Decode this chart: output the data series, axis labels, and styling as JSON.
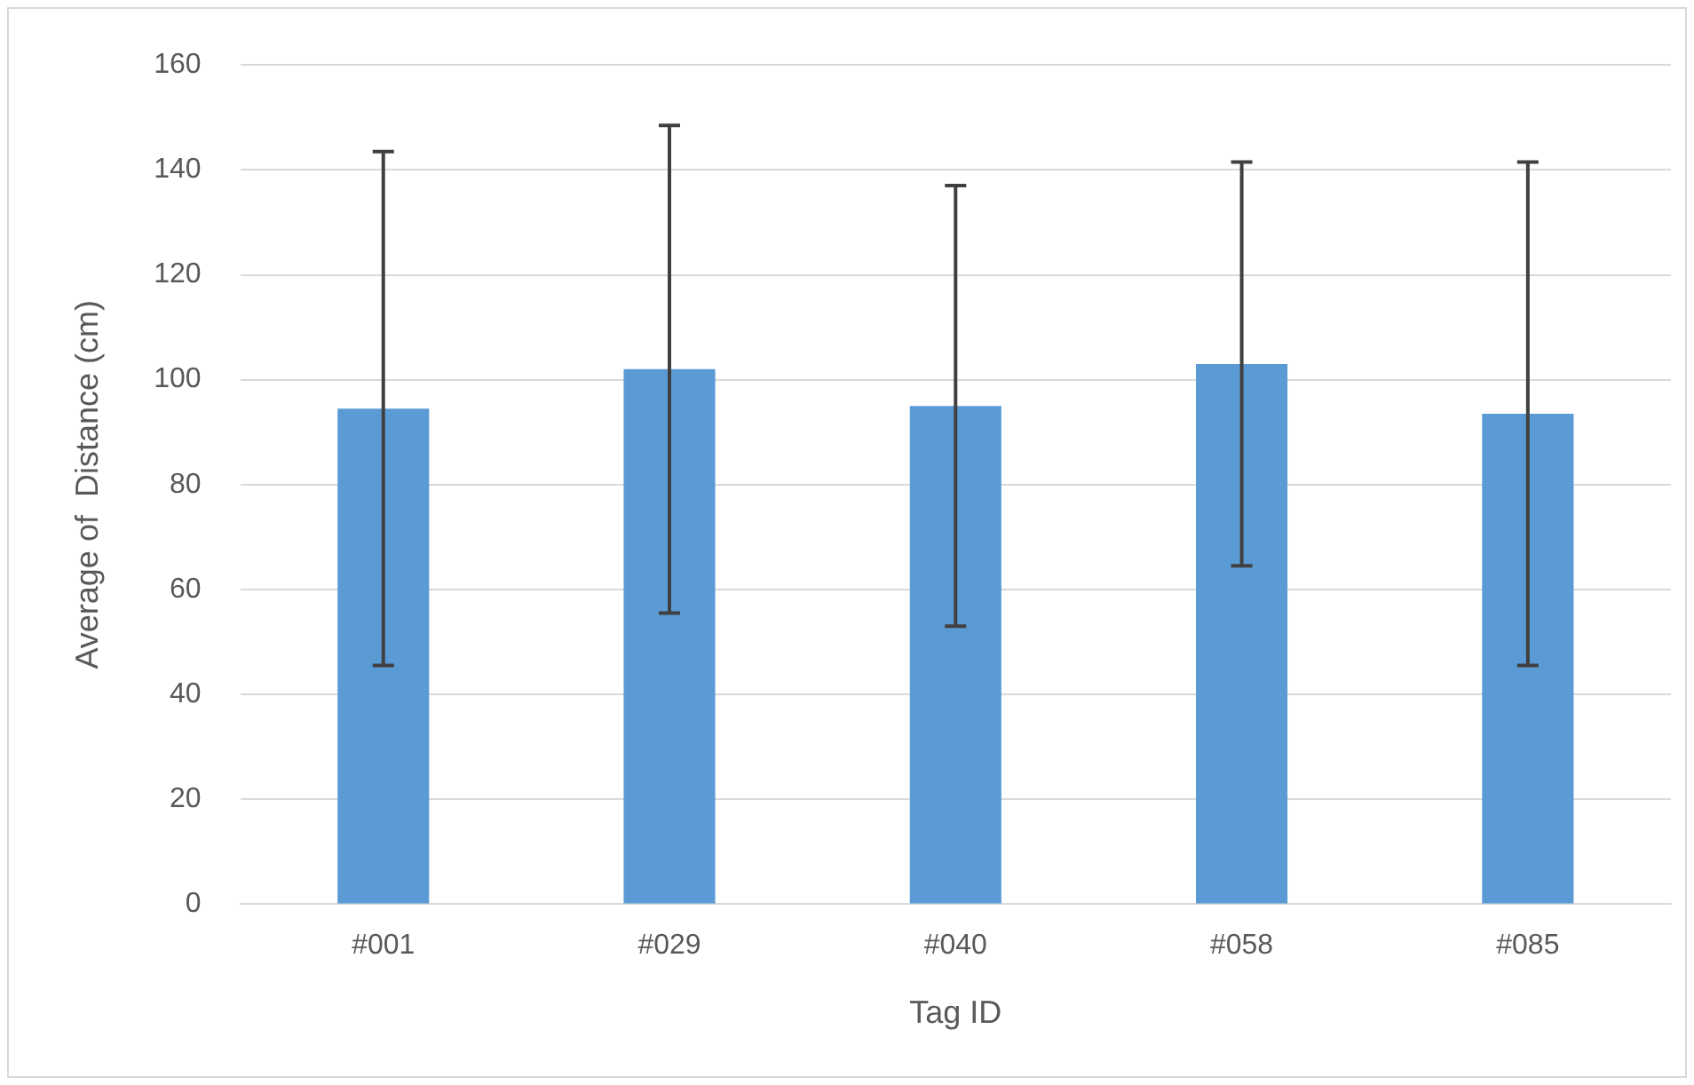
{
  "chart_data": {
    "type": "bar",
    "xlabel": "Tag ID",
    "ylabel": "Average of  Distance (cm)",
    "categories": [
      "#001",
      "#029",
      "#040",
      "#058",
      "#085"
    ],
    "values": [
      94.5,
      102,
      95,
      103,
      93.5
    ],
    "errors": [
      49,
      46.5,
      42,
      38.5,
      48
    ],
    "color": "#5b9bd5",
    "ylim": [
      0,
      160
    ],
    "yticks": [
      0,
      20,
      40,
      60,
      80,
      100,
      120,
      140,
      160
    ],
    "grid": "y",
    "legend": false
  }
}
